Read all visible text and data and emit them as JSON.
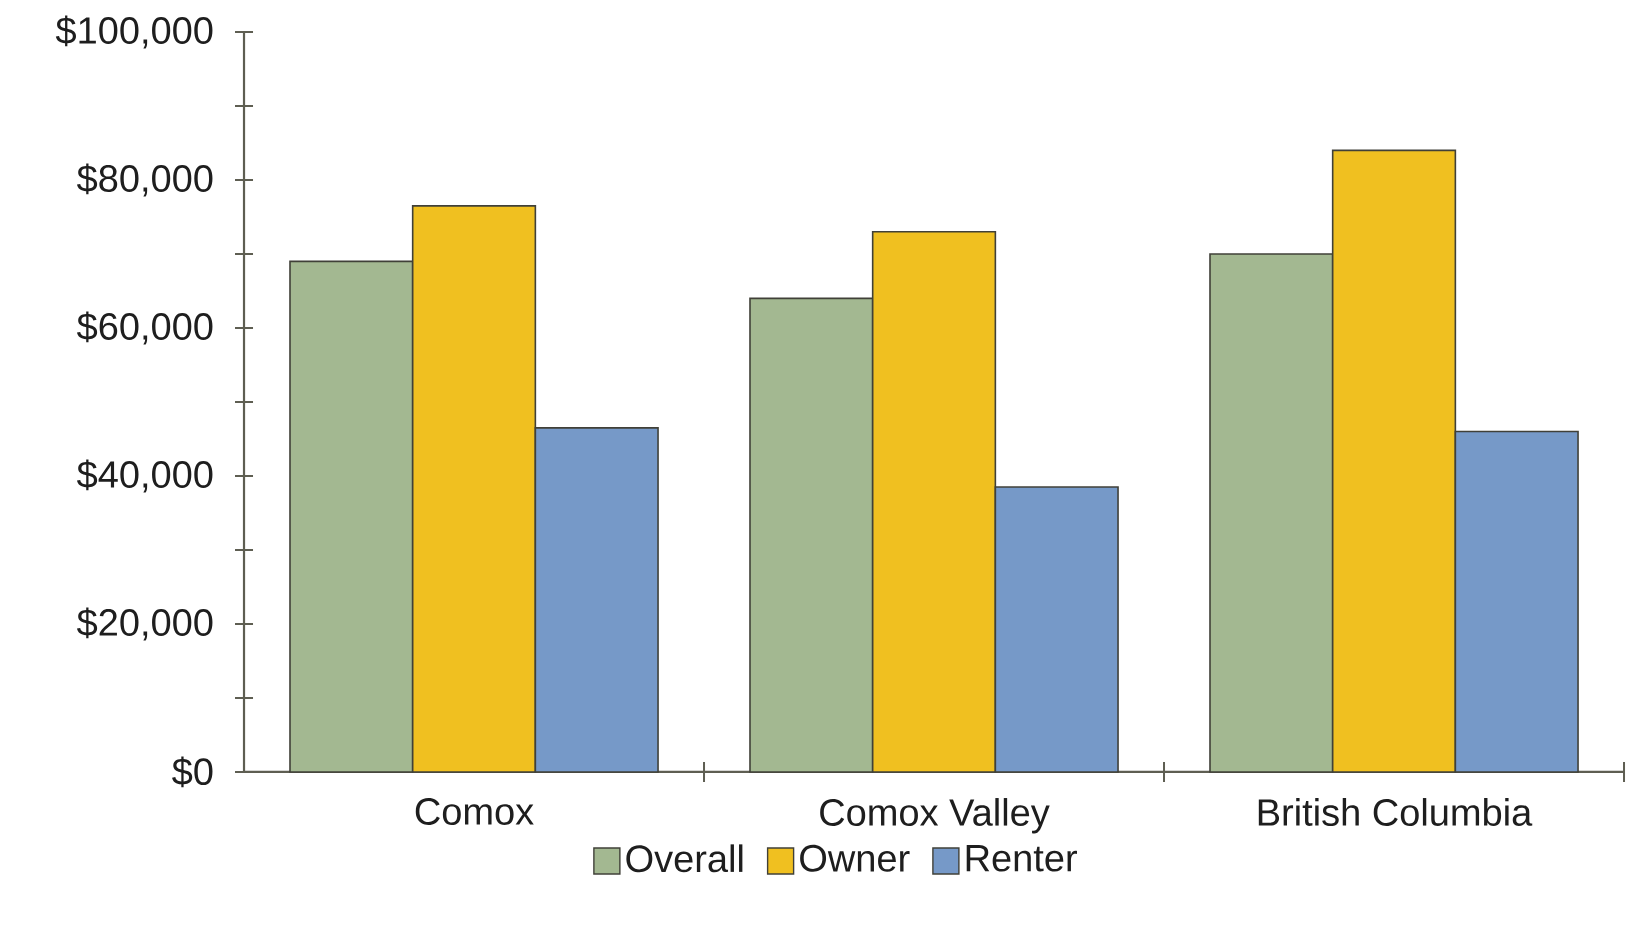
{
  "chart_data": {
    "type": "bar",
    "categories": [
      "Comox",
      "Comox Valley",
      "British Columbia"
    ],
    "series": [
      {
        "name": "Overall",
        "color": "#a3b891",
        "values": [
          69000,
          64000,
          70000
        ]
      },
      {
        "name": "Owner",
        "color": "#f0c020",
        "values": [
          76500,
          73000,
          84000
        ]
      },
      {
        "name": "Renter",
        "color": "#7699c8",
        "values": [
          46500,
          38500,
          46000
        ]
      }
    ],
    "ylim": [
      0,
      100000
    ],
    "yticks": [
      {
        "value": 0,
        "label": "$0"
      },
      {
        "value": 10000,
        "label": null
      },
      {
        "value": 20000,
        "label": "$20,000"
      },
      {
        "value": 30000,
        "label": null
      },
      {
        "value": 40000,
        "label": "$40,000"
      },
      {
        "value": 50000,
        "label": null
      },
      {
        "value": 60000,
        "label": "$60,000"
      },
      {
        "value": 70000,
        "label": null
      },
      {
        "value": 80000,
        "label": "$80,000"
      },
      {
        "value": 90000,
        "label": null
      },
      {
        "value": 100000,
        "label": "$100,000"
      }
    ],
    "legend": "bottom"
  }
}
